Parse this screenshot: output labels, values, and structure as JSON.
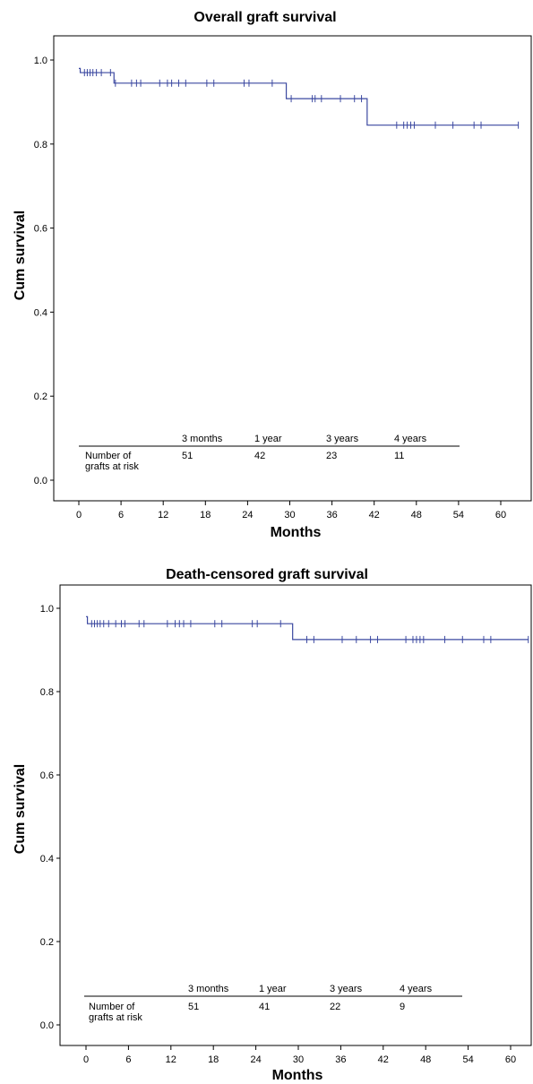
{
  "chart_data": [
    {
      "type": "line",
      "title": "Overall graft survival",
      "xlabel": "Months",
      "ylabel": "Cum survival",
      "xlim": [
        -2,
        63
      ],
      "ylim": [
        -0.05,
        1.05
      ],
      "xticks": [
        0,
        6,
        12,
        18,
        24,
        30,
        36,
        42,
        48,
        54,
        60
      ],
      "yticks": [
        0.0,
        0.2,
        0.4,
        0.6,
        0.8,
        1.0
      ],
      "ytick_labels": [
        "0.0",
        "0.2",
        "0.4",
        "0.6",
        "0.8",
        "1.0"
      ],
      "grid": false,
      "line_color": "#3b48a0",
      "steps": [
        {
          "x": 0,
          "y": 0.98
        },
        {
          "x": 0.2,
          "y": 0.97
        },
        {
          "x": 5,
          "y": 0.945
        },
        {
          "x": 29.5,
          "y": 0.908
        },
        {
          "x": 41,
          "y": 0.845
        },
        {
          "x": 62.5,
          "y": 0.845
        }
      ],
      "censored_x": [
        0.8,
        1.2,
        1.6,
        2.0,
        2.5,
        3.2,
        4.5,
        5.2,
        7.5,
        8.2,
        8.8,
        11.5,
        12.6,
        13.2,
        14.2,
        15.2,
        18.2,
        19.2,
        23.5,
        24.2,
        27.5,
        30.2,
        33.2,
        33.6,
        34.5,
        37.2,
        39.2,
        40.2,
        45.2,
        46.2,
        46.7,
        47.2,
        47.7,
        50.7,
        53.2,
        56.2,
        57.2,
        62.5
      ],
      "risk_table": {
        "label": [
          "Number of",
          "grafts at risk"
        ],
        "timepoints": [
          "3 months",
          "1 year",
          "3 years",
          "4 years"
        ],
        "values": [
          "51",
          "42",
          "23",
          "11"
        ]
      }
    },
    {
      "type": "line",
      "title": "Death-censored graft survival",
      "xlabel": "Months",
      "ylabel": "Cum survival",
      "xlim": [
        -2,
        63
      ],
      "ylim": [
        -0.05,
        1.05
      ],
      "xticks": [
        0,
        6,
        12,
        18,
        24,
        30,
        36,
        42,
        48,
        54,
        60
      ],
      "yticks": [
        0.0,
        0.2,
        0.4,
        0.6,
        0.8,
        1.0
      ],
      "ytick_labels": [
        "0.0",
        "0.2",
        "0.4",
        "0.6",
        "0.8",
        "1.0"
      ],
      "grid": false,
      "line_color": "#3b48a0",
      "steps": [
        {
          "x": 0,
          "y": 0.98
        },
        {
          "x": 0.2,
          "y": 0.963
        },
        {
          "x": 29.2,
          "y": 0.925
        },
        {
          "x": 62.5,
          "y": 0.925
        }
      ],
      "censored_x": [
        0.8,
        1.2,
        1.6,
        2.0,
        2.5,
        3.2,
        4.2,
        5.0,
        5.5,
        7.5,
        8.2,
        11.5,
        12.6,
        13.2,
        13.8,
        14.8,
        18.2,
        19.2,
        23.5,
        24.2,
        27.5,
        31.2,
        32.2,
        36.2,
        38.2,
        40.2,
        41.2,
        45.2,
        46.2,
        46.7,
        47.2,
        47.7,
        50.7,
        53.2,
        56.2,
        57.2,
        62.5
      ],
      "risk_table": {
        "label": [
          "Number of",
          "grafts at risk"
        ],
        "timepoints": [
          "3 months",
          "1 year",
          "3 years",
          "4 years"
        ],
        "values": [
          "51",
          "41",
          "22",
          "9"
        ]
      }
    }
  ]
}
